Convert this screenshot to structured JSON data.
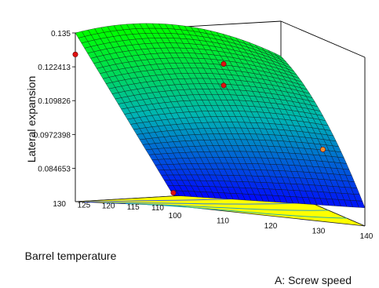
{
  "chart_data": {
    "type": "surface3d",
    "title": "",
    "zlabel": "Lateral expansion",
    "xlabel": "A: Screw speed",
    "ylabel": "Barrel temperature",
    "zlim": [
      0.072239,
      0.135
    ],
    "z_ticks": [
      "0.135",
      "0.122413",
      "0.109826",
      "0.0972398",
      "0.084653"
    ],
    "x_ticks": [
      100,
      110,
      120,
      130,
      140
    ],
    "y_ticks": [
      110,
      115,
      120,
      125,
      130
    ],
    "x_tick_labels": [
      "100",
      "110",
      "120",
      "130",
      "140"
    ],
    "y_tick_labels": [
      "110",
      "115",
      "120",
      "125",
      "130"
    ],
    "xlim": [
      100,
      140
    ],
    "ylim": [
      110,
      130
    ],
    "surface_corners": [
      {
        "x": 100,
        "y": 130,
        "z": 0.135
      },
      {
        "x": 140,
        "y": 130,
        "z": 0.122
      },
      {
        "x": 140,
        "y": 110,
        "z": 0.079
      },
      {
        "x": 100,
        "y": 110,
        "z": 0.076
      }
    ],
    "design_points": [
      {
        "x": 100,
        "y": 130,
        "z": 0.127
      },
      {
        "x": 120,
        "y": 120,
        "z": 0.125
      },
      {
        "x": 120,
        "y": 120,
        "z": 0.117
      },
      {
        "x": 140,
        "y": 120,
        "z": 0.094
      },
      {
        "x": 100,
        "y": 110,
        "z": 0.077
      }
    ],
    "colormap": [
      "#0000ff",
      "#00b4b4",
      "#00ff00"
    ],
    "floor_color": "#ffff00",
    "grid": false
  }
}
